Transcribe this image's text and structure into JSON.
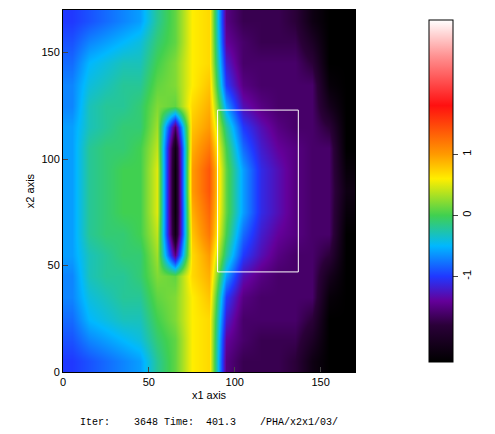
{
  "chart_data": {
    "type": "heatmap",
    "x_label": "x1 axis",
    "y_label": "x2 axis",
    "annotations": [
      "Iter:    3648 Time:  401.3    /PHA/x2x1/03/"
    ],
    "xlim": [
      0,
      170
    ],
    "ylim": [
      0,
      170
    ],
    "xticks": [
      0,
      50,
      100,
      150
    ],
    "yticks": [
      0,
      50,
      100,
      150
    ],
    "x": [
      5,
      15,
      25,
      35,
      45,
      55,
      65,
      75,
      85,
      95,
      105,
      115,
      125,
      135,
      145,
      155,
      165
    ],
    "y": [
      5,
      15,
      25,
      35,
      45,
      55,
      65,
      75,
      85,
      95,
      105,
      115,
      125,
      135,
      145,
      155,
      165
    ],
    "z": [
      [
        -1.0,
        -0.9,
        -0.8,
        -0.7,
        -0.6,
        -0.2,
        0.1,
        0.6,
        0.7,
        -1.5,
        -1.7,
        -1.7,
        -1.7,
        -1.8,
        -2.2,
        -2.4,
        -2.4
      ],
      [
        -0.9,
        -0.7,
        -0.6,
        -0.5,
        -0.4,
        -0.1,
        0.1,
        0.6,
        0.7,
        -1.4,
        -1.6,
        -1.7,
        -1.7,
        -1.7,
        -2.0,
        -2.4,
        -2.4
      ],
      [
        -0.8,
        -0.5,
        -0.4,
        -0.3,
        -0.3,
        0.0,
        0.2,
        0.6,
        0.7,
        -1.2,
        -1.6,
        -1.6,
        -1.6,
        -1.6,
        -1.8,
        -2.4,
        -2.4
      ],
      [
        -0.7,
        -0.4,
        -0.3,
        -0.2,
        -0.2,
        0.1,
        0.2,
        0.6,
        0.8,
        -1.0,
        -1.5,
        -1.6,
        -1.6,
        -1.6,
        -1.6,
        -2.3,
        -2.4
      ],
      [
        -0.7,
        -0.3,
        -0.2,
        -0.2,
        -0.1,
        0.2,
        0.1,
        0.7,
        0.9,
        -0.6,
        -1.3,
        -1.5,
        -1.6,
        -1.6,
        -1.6,
        -2.1,
        -2.4
      ],
      [
        -0.6,
        -0.3,
        -0.2,
        -0.1,
        -0.1,
        0.3,
        -1.5,
        0.7,
        1.0,
        -0.2,
        -1.0,
        -1.3,
        -1.5,
        -1.6,
        -1.6,
        -1.8,
        -2.4
      ],
      [
        -0.6,
        -0.2,
        -0.1,
        -0.1,
        0.0,
        0.4,
        -2.2,
        0.8,
        1.2,
        0.0,
        -0.8,
        -1.2,
        -1.4,
        -1.5,
        -1.6,
        -1.6,
        -2.4
      ],
      [
        -0.6,
        -0.2,
        -0.1,
        0.0,
        0.0,
        0.5,
        -2.3,
        0.9,
        1.3,
        0.1,
        -0.6,
        -1.1,
        -1.3,
        -1.5,
        -1.6,
        -1.6,
        -2.3
      ],
      [
        -0.6,
        -0.2,
        -0.1,
        0.0,
        0.0,
        0.5,
        -2.3,
        1.0,
        1.4,
        0.1,
        -0.6,
        -1.1,
        -1.3,
        -1.5,
        -1.6,
        -1.6,
        -2.2
      ],
      [
        -0.6,
        -0.2,
        -0.1,
        0.0,
        0.0,
        0.5,
        -2.3,
        1.0,
        1.4,
        0.1,
        -0.6,
        -1.1,
        -1.3,
        -1.5,
        -1.6,
        -1.6,
        -2.3
      ],
      [
        -0.6,
        -0.2,
        -0.1,
        -0.1,
        0.0,
        0.4,
        -2.2,
        0.9,
        1.2,
        0.0,
        -0.8,
        -1.2,
        -1.4,
        -1.5,
        -1.6,
        -1.6,
        -2.4
      ],
      [
        -0.6,
        -0.3,
        -0.2,
        -0.1,
        -0.1,
        0.3,
        -1.6,
        0.8,
        1.0,
        -0.2,
        -1.0,
        -1.3,
        -1.5,
        -1.6,
        -1.6,
        -1.8,
        -2.4
      ],
      [
        -0.7,
        -0.3,
        -0.2,
        -0.2,
        -0.1,
        0.2,
        0.1,
        0.7,
        0.9,
        -0.6,
        -1.3,
        -1.5,
        -1.6,
        -1.6,
        -1.6,
        -2.1,
        -2.4
      ],
      [
        -0.7,
        -0.4,
        -0.3,
        -0.2,
        -0.2,
        0.1,
        0.2,
        0.6,
        0.8,
        -1.0,
        -1.5,
        -1.6,
        -1.6,
        -1.6,
        -1.6,
        -2.3,
        -2.4
      ],
      [
        -0.8,
        -0.5,
        -0.4,
        -0.3,
        -0.3,
        0.0,
        0.2,
        0.6,
        0.7,
        -1.2,
        -1.6,
        -1.6,
        -1.6,
        -1.6,
        -1.8,
        -2.4,
        -2.4
      ],
      [
        -0.9,
        -0.7,
        -0.6,
        -0.5,
        -0.4,
        -0.1,
        0.1,
        0.6,
        0.7,
        -1.4,
        -1.6,
        -1.7,
        -1.7,
        -1.7,
        -2.0,
        -2.4,
        -2.4
      ],
      [
        -1.0,
        -0.9,
        -0.8,
        -0.7,
        -0.6,
        -0.2,
        0.1,
        0.6,
        0.7,
        -1.5,
        -1.7,
        -1.7,
        -1.7,
        -1.8,
        -2.2,
        -2.4,
        -2.4
      ]
    ],
    "zlim": [
      -2.4,
      3.2
    ],
    "zticks": [
      -1,
      0,
      1
    ],
    "box": {
      "x": [
        90,
        137
      ],
      "y": [
        47,
        123
      ]
    }
  }
}
